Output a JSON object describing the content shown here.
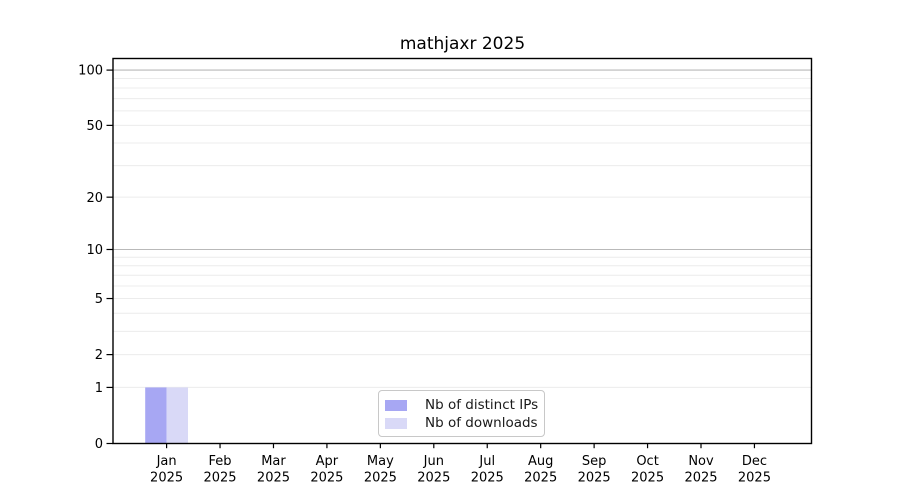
{
  "chart_data": {
    "type": "bar",
    "title": "mathjaxr 2025",
    "categories": [
      "Jan",
      "Feb",
      "Mar",
      "Apr",
      "May",
      "Jun",
      "Jul",
      "Aug",
      "Sep",
      "Oct",
      "Nov",
      "Dec"
    ],
    "x_tick_year": "2025",
    "series": [
      {
        "name": "Nb of distinct IPs",
        "color": "#a7a7f3",
        "values": [
          1,
          0,
          0,
          0,
          0,
          0,
          0,
          0,
          0,
          0,
          0,
          0
        ]
      },
      {
        "name": "Nb of downloads",
        "color": "#d9d9f7",
        "values": [
          1,
          0,
          0,
          0,
          0,
          0,
          0,
          0,
          0,
          0,
          0,
          0
        ]
      }
    ],
    "y_axis": {
      "scale": "log1p",
      "tick_labels": [
        "0",
        "1",
        "2",
        "5",
        "10",
        "20",
        "50",
        "100"
      ],
      "ticks": [
        0,
        1,
        2,
        5,
        10,
        20,
        50,
        100
      ],
      "minor_gridlines": [
        1,
        2,
        3,
        4,
        5,
        6,
        7,
        8,
        9,
        20,
        30,
        40,
        50,
        60,
        70,
        80,
        90
      ],
      "major_gridlines": [
        10,
        100
      ],
      "ylim": [
        0,
        114
      ]
    },
    "legend": {
      "position": "lower center"
    },
    "colors": {
      "grid_minor": "#ececec",
      "grid_major": "#b9b9b9",
      "axis": "#000000",
      "background": "#ffffff"
    }
  }
}
